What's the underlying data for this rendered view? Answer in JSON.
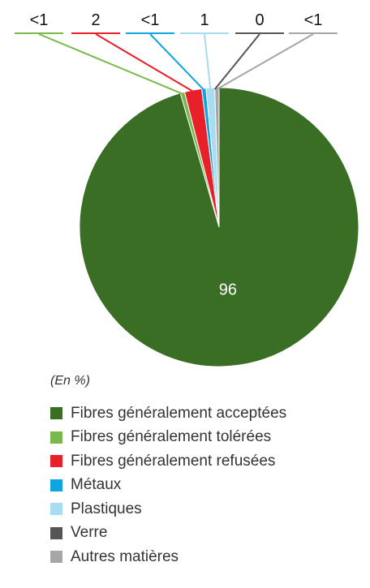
{
  "chart_data": {
    "type": "pie",
    "unit_label": "(En %)",
    "slices": [
      {
        "name": "Fibres généralement acceptées",
        "value": 96,
        "label": "96",
        "color": "#3a6e24"
      },
      {
        "name": "Fibres généralement tolérées",
        "value": 0.5,
        "label": "<1",
        "color": "#79b84a"
      },
      {
        "name": "Fibres généralement refusées",
        "value": 2,
        "label": "2",
        "color": "#e8202a"
      },
      {
        "name": "Métaux",
        "value": 0.5,
        "label": "<1",
        "color": "#0ea5e0"
      },
      {
        "name": "Plastiques",
        "value": 1,
        "label": "1",
        "color": "#a7dcf1"
      },
      {
        "name": "Verre",
        "value": 0,
        "label": "0",
        "color": "#555555"
      },
      {
        "name": "Autres matières",
        "value": 0.5,
        "label": "<1",
        "color": "#a6a6a6"
      }
    ],
    "legend_position": "bottom"
  }
}
